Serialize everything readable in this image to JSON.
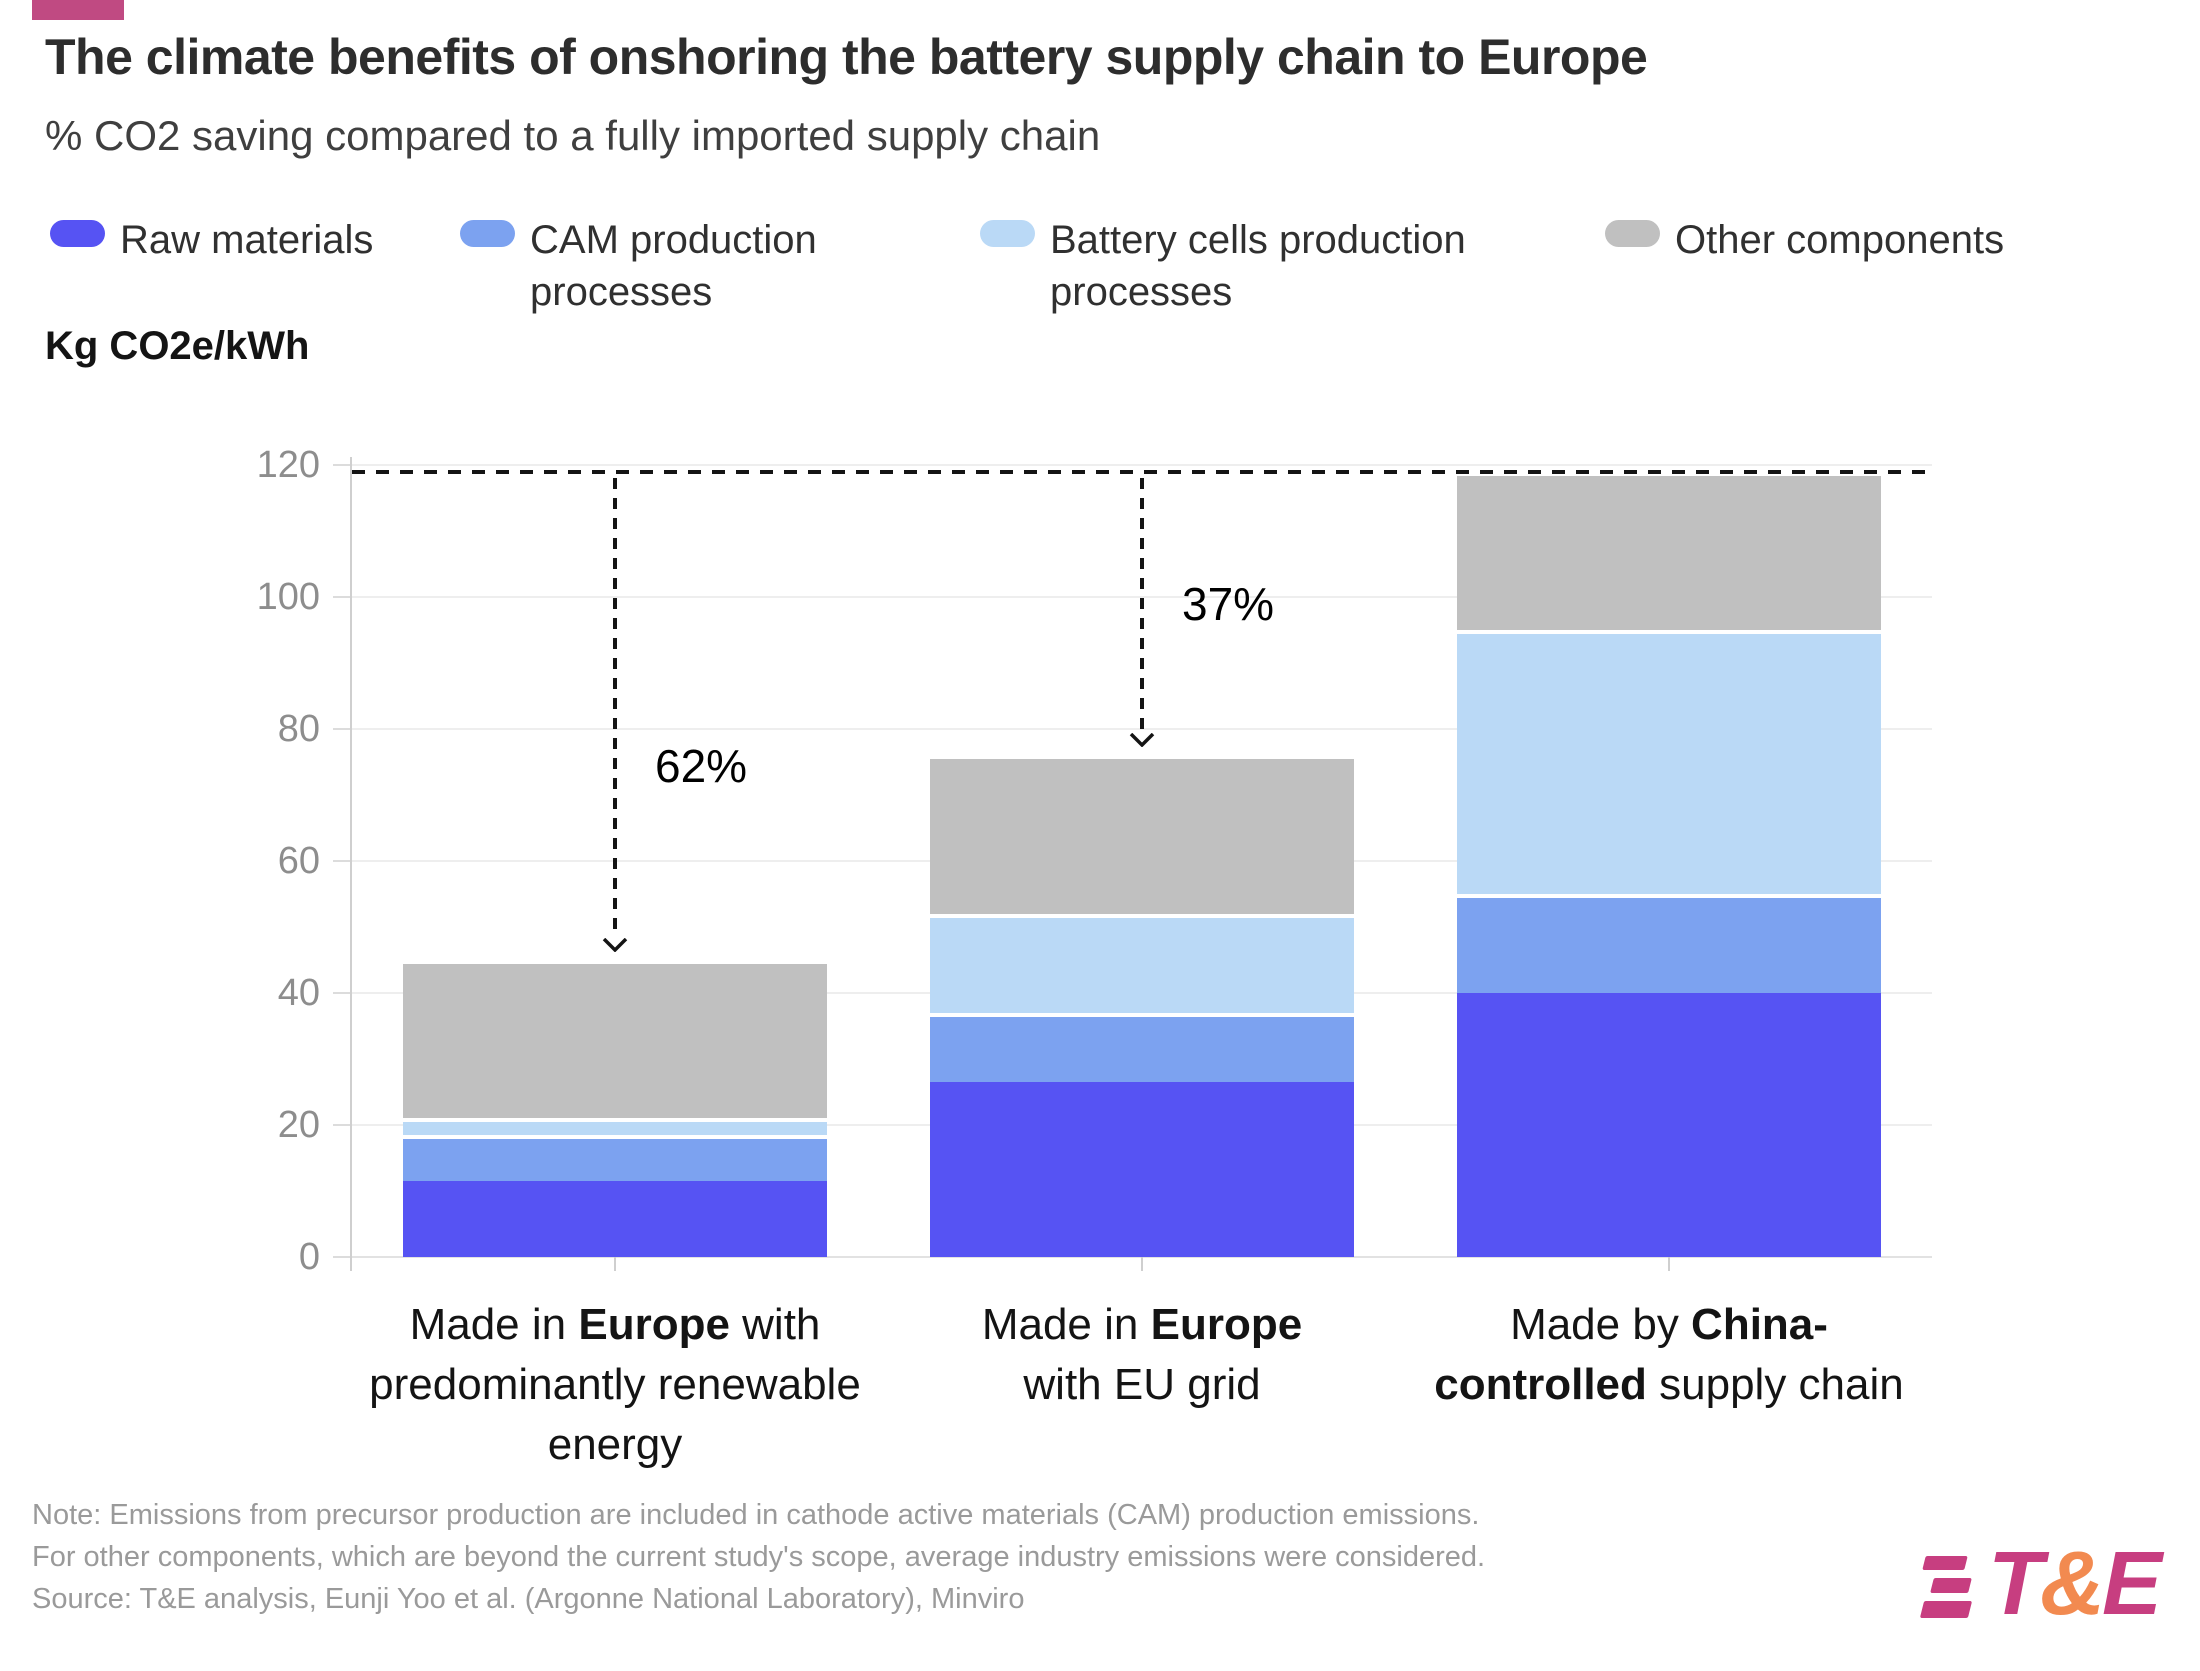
{
  "brand": {
    "accent_pink": "#c04a82",
    "logo_magenta": "#c73e80",
    "logo_orange": "#f28a50"
  },
  "header": {
    "title": "The climate benefits of onshoring the battery supply chain to Europe",
    "subtitle": "% CO2 saving compared to a fully imported supply chain"
  },
  "unit_label": "Kg CO2e/kWh",
  "legend": {
    "items": [
      {
        "label": "Raw materials"
      },
      {
        "label": "CAM production processes"
      },
      {
        "label": "Battery cells production processes"
      },
      {
        "label": "Other components"
      }
    ]
  },
  "chart_data": {
    "type": "bar",
    "stacked": true,
    "title": "The climate benefits of onshoring the battery supply chain to Europe",
    "subtitle": "% CO2 saving compared to a fully imported supply chain",
    "ylabel": "Kg CO2e/kWh",
    "ylim": [
      0,
      120
    ],
    "yticks": [
      0,
      20,
      40,
      60,
      80,
      100,
      120
    ],
    "grid": true,
    "legend_position": "top",
    "categories_plain": [
      "Made in Europe with predominantly renewable energy",
      "Made in Europe with EU grid",
      "Made by China-controlled supply chain"
    ],
    "categories": [
      {
        "lines": [
          [
            {
              "t": "Made in ",
              "b": false
            },
            {
              "t": "Europe",
              "b": true
            },
            {
              "t": " with",
              "b": false
            }
          ],
          [
            {
              "t": "predominantly renewable",
              "b": false
            }
          ],
          [
            {
              "t": "energy",
              "b": false
            }
          ]
        ]
      },
      {
        "lines": [
          [
            {
              "t": "Made in ",
              "b": false
            },
            {
              "t": "Europe",
              "b": true
            }
          ],
          [
            {
              "t": "with EU grid",
              "b": false
            }
          ]
        ]
      },
      {
        "lines": [
          [
            {
              "t": "Made by ",
              "b": false
            },
            {
              "t": "China-",
              "b": true
            }
          ],
          [
            {
              "t": "controlled",
              "b": true
            },
            {
              "t": " supply chain",
              "b": false
            }
          ]
        ]
      }
    ],
    "series": [
      {
        "name": "Raw materials",
        "color": "#5653f3",
        "values": [
          11.5,
          26.5,
          40
        ]
      },
      {
        "name": "CAM production processes",
        "color": "#7ca2f0",
        "values": [
          7.0,
          10.5,
          15
        ]
      },
      {
        "name": "Battery cells production processes",
        "color": "#bad9f6",
        "values": [
          2.5,
          15.0,
          40
        ]
      },
      {
        "name": "Other components",
        "color": "#c0c0c0",
        "values": [
          24.0,
          24.0,
          24
        ]
      }
    ],
    "totals": [
      45,
      76,
      119
    ],
    "reference_line": {
      "value": 119,
      "style": "dashed",
      "color": "#141414"
    },
    "annotations": [
      {
        "bar_index": 0,
        "label": "62%"
      },
      {
        "bar_index": 1,
        "label": "37%"
      }
    ]
  },
  "note": "Note: Emissions from precursor production are included in cathode active materials (CAM) production emissions. For other components, which are beyond the current study's scope, average industry emissions were considered. Source: T&E analysis, Eunji Yoo et al. (Argonne National Laboratory), Minviro",
  "logo": {
    "t": "T",
    "amp": "&",
    "e": "E"
  }
}
